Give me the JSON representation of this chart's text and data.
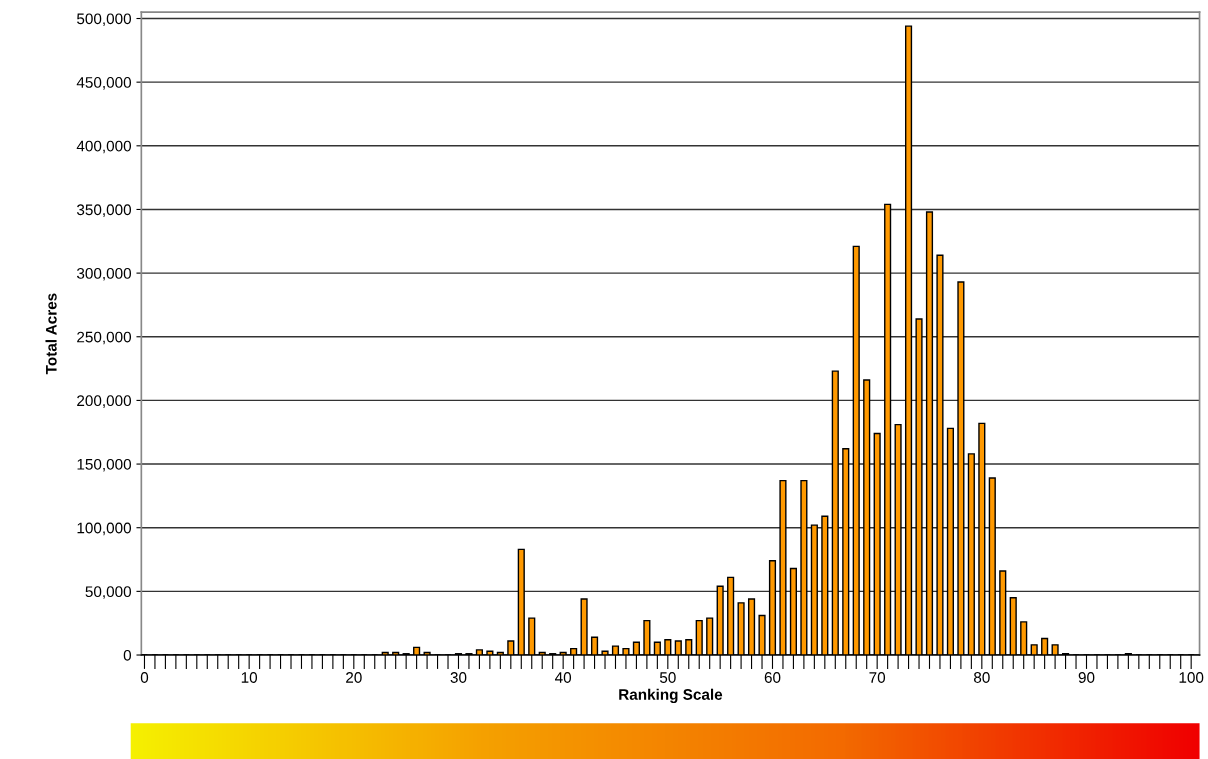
{
  "chart_data": {
    "type": "bar",
    "xlabel": "Ranking Scale",
    "ylabel": "Total Acres",
    "color": "#ff9900",
    "x": [
      0,
      1,
      2,
      3,
      4,
      5,
      6,
      7,
      8,
      9,
      10,
      11,
      12,
      13,
      14,
      15,
      16,
      17,
      18,
      19,
      20,
      21,
      22,
      23,
      24,
      25,
      26,
      27,
      28,
      29,
      30,
      31,
      32,
      33,
      34,
      35,
      36,
      37,
      38,
      39,
      40,
      41,
      42,
      43,
      44,
      45,
      46,
      47,
      48,
      49,
      50,
      51,
      52,
      53,
      54,
      55,
      56,
      57,
      58,
      59,
      60,
      61,
      62,
      63,
      64,
      65,
      66,
      67,
      68,
      69,
      70,
      71,
      72,
      73,
      74,
      75,
      76,
      77,
      78,
      79,
      80,
      81,
      82,
      83,
      84,
      85,
      86,
      87,
      88,
      89,
      90,
      91,
      92,
      93,
      94,
      95,
      96,
      97,
      98,
      99,
      100
    ],
    "values": [
      0,
      0,
      0,
      0,
      0,
      0,
      0,
      0,
      0,
      0,
      0,
      0,
      0,
      0,
      0,
      0,
      0,
      0,
      0,
      0,
      0,
      0,
      0,
      2000,
      2000,
      1000,
      6000,
      2000,
      0,
      0,
      1000,
      1000,
      4000,
      3000,
      2000,
      11000,
      83000,
      29000,
      2000,
      1000,
      2000,
      5000,
      44000,
      14000,
      3000,
      7000,
      5000,
      10000,
      27000,
      10000,
      12000,
      11000,
      12000,
      27000,
      29000,
      54000,
      61000,
      41000,
      44000,
      31000,
      74000,
      137000,
      68000,
      137000,
      102000,
      109000,
      223000,
      162000,
      321000,
      216000,
      174000,
      354000,
      181000,
      494000,
      264000,
      348000,
      314000,
      178000,
      293000,
      158000,
      182000,
      139000,
      66000,
      45000,
      26000,
      8000,
      13000,
      8000,
      1000,
      0,
      0,
      0,
      0,
      0,
      1000,
      0,
      0,
      0,
      0,
      0,
      0
    ],
    "xlim": [
      -0.3,
      100.8
    ],
    "ylim": [
      0,
      505000
    ],
    "xticks": [
      {
        "value": 0,
        "label": "0"
      },
      {
        "value": 1,
        "label": null
      },
      {
        "value": 2,
        "label": null
      },
      {
        "value": 3,
        "label": null
      },
      {
        "value": 4,
        "label": null
      },
      {
        "value": 5,
        "label": null
      },
      {
        "value": 6,
        "label": null
      },
      {
        "value": 7,
        "label": null
      },
      {
        "value": 8,
        "label": null
      },
      {
        "value": 9,
        "label": null
      },
      {
        "value": 10,
        "label": "10"
      },
      {
        "value": 11,
        "label": null
      },
      {
        "value": 12,
        "label": null
      },
      {
        "value": 13,
        "label": null
      },
      {
        "value": 14,
        "label": null
      },
      {
        "value": 15,
        "label": null
      },
      {
        "value": 16,
        "label": null
      },
      {
        "value": 17,
        "label": null
      },
      {
        "value": 18,
        "label": null
      },
      {
        "value": 19,
        "label": null
      },
      {
        "value": 20,
        "label": "20"
      },
      {
        "value": 21,
        "label": null
      },
      {
        "value": 22,
        "label": null
      },
      {
        "value": 23,
        "label": null
      },
      {
        "value": 24,
        "label": null
      },
      {
        "value": 25,
        "label": null
      },
      {
        "value": 26,
        "label": null
      },
      {
        "value": 27,
        "label": null
      },
      {
        "value": 28,
        "label": null
      },
      {
        "value": 29,
        "label": null
      },
      {
        "value": 30,
        "label": "30"
      },
      {
        "value": 31,
        "label": null
      },
      {
        "value": 32,
        "label": null
      },
      {
        "value": 33,
        "label": null
      },
      {
        "value": 34,
        "label": null
      },
      {
        "value": 35,
        "label": null
      },
      {
        "value": 36,
        "label": null
      },
      {
        "value": 37,
        "label": null
      },
      {
        "value": 38,
        "label": null
      },
      {
        "value": 39,
        "label": null
      },
      {
        "value": 40,
        "label": "40"
      },
      {
        "value": 41,
        "label": null
      },
      {
        "value": 42,
        "label": null
      },
      {
        "value": 43,
        "label": null
      },
      {
        "value": 44,
        "label": null
      },
      {
        "value": 45,
        "label": null
      },
      {
        "value": 46,
        "label": null
      },
      {
        "value": 47,
        "label": null
      },
      {
        "value": 48,
        "label": null
      },
      {
        "value": 49,
        "label": null
      },
      {
        "value": 50,
        "label": "50"
      },
      {
        "value": 51,
        "label": null
      },
      {
        "value": 52,
        "label": null
      },
      {
        "value": 53,
        "label": null
      },
      {
        "value": 54,
        "label": null
      },
      {
        "value": 55,
        "label": null
      },
      {
        "value": 56,
        "label": null
      },
      {
        "value": 57,
        "label": null
      },
      {
        "value": 58,
        "label": null
      },
      {
        "value": 59,
        "label": null
      },
      {
        "value": 60,
        "label": "60"
      },
      {
        "value": 61,
        "label": null
      },
      {
        "value": 62,
        "label": null
      },
      {
        "value": 63,
        "label": null
      },
      {
        "value": 64,
        "label": null
      },
      {
        "value": 65,
        "label": null
      },
      {
        "value": 66,
        "label": null
      },
      {
        "value": 67,
        "label": null
      },
      {
        "value": 68,
        "label": null
      },
      {
        "value": 69,
        "label": null
      },
      {
        "value": 70,
        "label": "70"
      },
      {
        "value": 71,
        "label": null
      },
      {
        "value": 72,
        "label": null
      },
      {
        "value": 73,
        "label": null
      },
      {
        "value": 74,
        "label": null
      },
      {
        "value": 75,
        "label": null
      },
      {
        "value": 76,
        "label": null
      },
      {
        "value": 77,
        "label": null
      },
      {
        "value": 78,
        "label": null
      },
      {
        "value": 79,
        "label": null
      },
      {
        "value": 80,
        "label": "80"
      },
      {
        "value": 81,
        "label": null
      },
      {
        "value": 82,
        "label": null
      },
      {
        "value": 83,
        "label": null
      },
      {
        "value": 84,
        "label": null
      },
      {
        "value": 85,
        "label": null
      },
      {
        "value": 86,
        "label": null
      },
      {
        "value": 87,
        "label": null
      },
      {
        "value": 88,
        "label": null
      },
      {
        "value": 89,
        "label": null
      },
      {
        "value": 90,
        "label": "90"
      },
      {
        "value": 91,
        "label": null
      },
      {
        "value": 92,
        "label": null
      },
      {
        "value": 93,
        "label": null
      },
      {
        "value": 94,
        "label": null
      },
      {
        "value": 95,
        "label": null
      },
      {
        "value": 96,
        "label": null
      },
      {
        "value": 97,
        "label": null
      },
      {
        "value": 98,
        "label": null
      },
      {
        "value": 99,
        "label": null
      },
      {
        "value": 100,
        "label": "100"
      }
    ],
    "yticks": [
      {
        "value": 0,
        "label": "0"
      },
      {
        "value": 50000,
        "label": "50,000"
      },
      {
        "value": 100000,
        "label": "100,000"
      },
      {
        "value": 150000,
        "label": "150,000"
      },
      {
        "value": 200000,
        "label": "200,000"
      },
      {
        "value": 250000,
        "label": "250,000"
      },
      {
        "value": 300000,
        "label": "300,000"
      },
      {
        "value": 350000,
        "label": "350,000"
      },
      {
        "value": 400000,
        "label": "400,000"
      },
      {
        "value": 450000,
        "label": "450,000"
      },
      {
        "value": 500000,
        "label": "500,000"
      }
    ],
    "grid": "y",
    "legend": false
  }
}
